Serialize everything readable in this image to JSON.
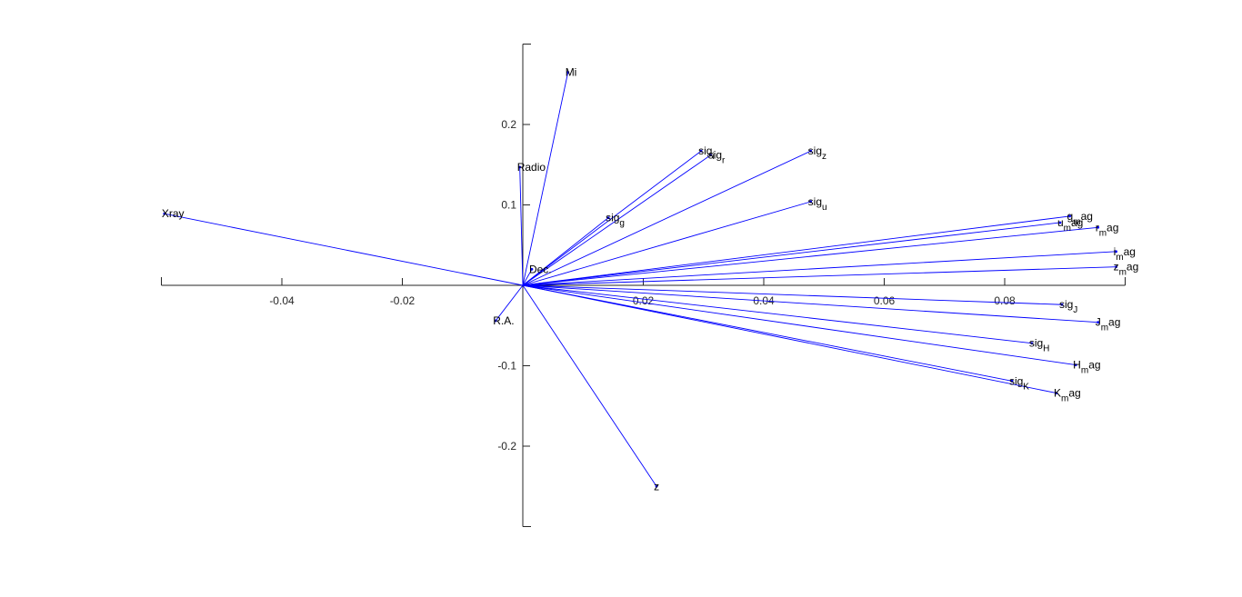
{
  "chart_data": {
    "type": "biplot",
    "title": "",
    "xlabel": "",
    "ylabel": "",
    "xlim": [
      -0.06,
      0.1
    ],
    "ylim": [
      -0.3,
      0.3
    ],
    "grid": false,
    "legend": "none",
    "colors": {
      "vector": "#0000ff",
      "axis": "#262626",
      "text": "#000000"
    },
    "x_ticks": [
      {
        "value": -0.04,
        "label": "-0.04"
      },
      {
        "value": -0.02,
        "label": "-0.02"
      },
      {
        "value": 0.02,
        "label": "0.02"
      },
      {
        "value": 0.04,
        "label": "0.04"
      },
      {
        "value": 0.06,
        "label": "0.06"
      },
      {
        "value": 0.08,
        "label": "0.08"
      }
    ],
    "y_ticks": [
      {
        "value": 0.2,
        "label": "0.2"
      },
      {
        "value": 0.1,
        "label": "0.1"
      },
      {
        "value": -0.1,
        "label": "-0.1"
      },
      {
        "value": -0.2,
        "label": "-0.2"
      }
    ],
    "vectors": [
      {
        "label": "Mi",
        "sub": "",
        "suffix": "",
        "x": 0.0075,
        "y": 0.265
      },
      {
        "label": "Radio",
        "sub": "",
        "suffix": "",
        "x": -0.0005,
        "y": 0.147
      },
      {
        "label": "Xray",
        "sub": "",
        "suffix": "",
        "x": -0.0595,
        "y": 0.089
      },
      {
        "label": "Dec.",
        "sub": "",
        "suffix": "",
        "x": 0.0015,
        "y": 0.02
      },
      {
        "label": "R.A.",
        "sub": "",
        "suffix": "",
        "x": -0.0045,
        "y": -0.044
      },
      {
        "label": "z",
        "sub": "",
        "suffix": "",
        "x": 0.0222,
        "y": -0.25
      },
      {
        "label": "sig",
        "sub": "g",
        "suffix": "",
        "x": 0.0142,
        "y": 0.084
      },
      {
        "label": "sig",
        "sub": "i",
        "suffix": "",
        "x": 0.0296,
        "y": 0.167
      },
      {
        "label": "sig",
        "sub": "r",
        "suffix": "",
        "x": 0.0312,
        "y": 0.162
      },
      {
        "label": "sig",
        "sub": "z",
        "suffix": "",
        "x": 0.0478,
        "y": 0.167
      },
      {
        "label": "sig",
        "sub": "u",
        "suffix": "",
        "x": 0.0478,
        "y": 0.104
      },
      {
        "label": "g",
        "sub": "m",
        "suffix": "ag",
        "x": 0.0908,
        "y": 0.086
      },
      {
        "label": "u",
        "sub": "m",
        "suffix": "ag",
        "x": 0.0892,
        "y": 0.078
      },
      {
        "label": "r",
        "sub": "m",
        "suffix": "ag",
        "x": 0.0955,
        "y": 0.072
      },
      {
        "label": "i",
        "sub": "m",
        "suffix": "ag",
        "x": 0.0985,
        "y": 0.042
      },
      {
        "label": "z",
        "sub": "m",
        "suffix": "ag",
        "x": 0.0985,
        "y": 0.023
      },
      {
        "label": "sig",
        "sub": "J",
        "suffix": "",
        "x": 0.0895,
        "y": -0.024
      },
      {
        "label": "J",
        "sub": "m",
        "suffix": "ag",
        "x": 0.0955,
        "y": -0.046
      },
      {
        "label": "sig",
        "sub": "H",
        "suffix": "",
        "x": 0.0845,
        "y": -0.072
      },
      {
        "label": "H",
        "sub": "m",
        "suffix": "ag",
        "x": 0.0918,
        "y": -0.099
      },
      {
        "label": "sig",
        "sub": "K",
        "suffix": "",
        "x": 0.0812,
        "y": -0.119
      },
      {
        "label": "K",
        "sub": "m",
        "suffix": "ag",
        "x": 0.0886,
        "y": -0.134
      }
    ]
  }
}
